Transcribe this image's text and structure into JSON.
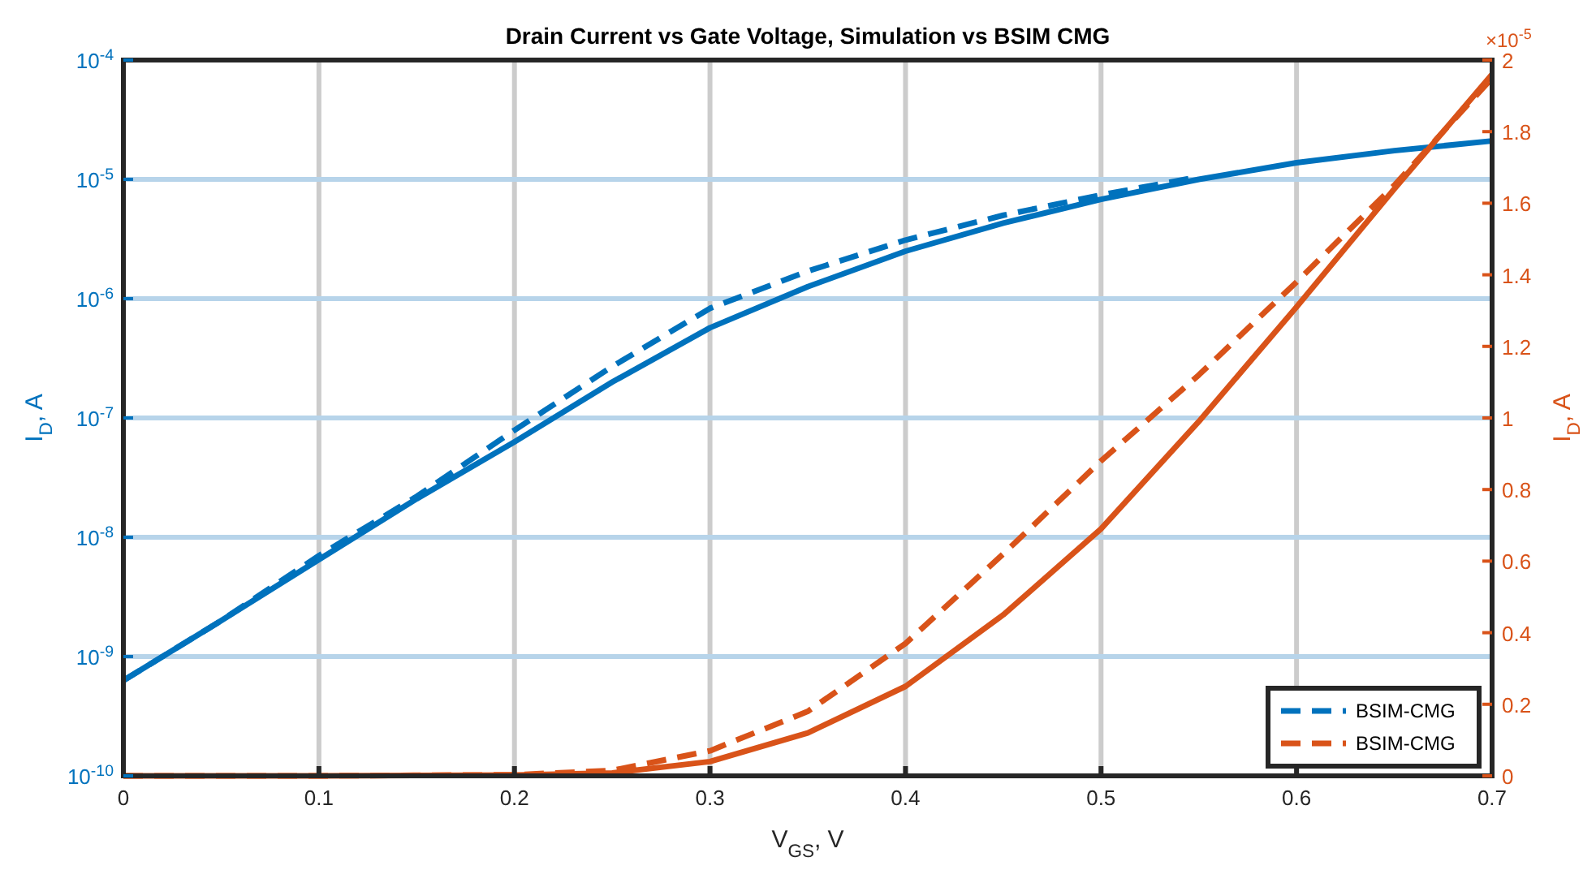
{
  "chart_data": {
    "type": "line",
    "title": "Drain Current vs Gate Voltage, Simulation vs BSIM CMG",
    "xlabel": "V$_{GS}$, V",
    "ylabel": "I$_{D}$, A",
    "y2label": "I$_{D}$, A",
    "log": "y",
    "grid": true,
    "legend": "bottom right",
    "xlim": [
      0,
      0.7
    ],
    "xticks": [
      0,
      0.1,
      0.2,
      0.3,
      0.4,
      0.5,
      0.6,
      0.7
    ],
    "ylim": [
      1e-10,
      0.0001
    ],
    "yticks": [
      {
        "value": 1e-10,
        "label": "10$^{-10}$"
      },
      {
        "value": 1e-09,
        "label": "10$^{-9}$"
      },
      {
        "value": 1e-08,
        "label": "10$^{-8}$"
      },
      {
        "value": 1e-07,
        "label": "10$^{-7}$"
      },
      {
        "value": 1e-06,
        "label": "10$^{-6}$"
      },
      {
        "value": 1e-05,
        "label": "10$^{-5}$"
      },
      {
        "value": 0.0001,
        "label": "10$^{-4}$"
      }
    ],
    "y2lim": [
      0,
      2
    ],
    "y2ticks": [
      0,
      0.2,
      0.4,
      0.6,
      0.8,
      1,
      1.2,
      1.4,
      1.6,
      1.8,
      2
    ],
    "annotations": [
      "×10$^{-5}$"
    ],
    "series": [
      {
        "color": "#0072bd",
        "line_style": "solid",
        "x": [
          0,
          0.05,
          0.1,
          0.15,
          0.2,
          0.25,
          0.3,
          0.35,
          0.4,
          0.45,
          0.5,
          0.55,
          0.6,
          0.65,
          0.7
        ],
        "values": [
          6.3e-10,
          2e-09,
          6.5e-09,
          2.1e-08,
          6.3e-08,
          2e-07,
          5.7e-07,
          1.26e-06,
          2.5e-06,
          4.3e-06,
          6.8e-06,
          1e-05,
          1.38e-05,
          1.74e-05,
          2.1e-05
        ]
      },
      {
        "name": "BSIM-CMG",
        "color": "#0072bd",
        "line_style": "dashed",
        "x": [
          0,
          0.05,
          0.1,
          0.15,
          0.2,
          0.25,
          0.3,
          0.35,
          0.4,
          0.45,
          0.5,
          0.55
        ],
        "values": [
          6.3e-10,
          2e-09,
          7e-09,
          2.2e-08,
          7.9e-08,
          2.7e-07,
          8.3e-07,
          1.7e-06,
          3.1e-06,
          5e-06,
          7.4e-06,
          1.05e-05
        ]
      },
      {
        "color": "#d95319",
        "axis": "y2",
        "line_style": "solid",
        "x": [
          0,
          0.1,
          0.2,
          0.25,
          0.3,
          0.35,
          0.4,
          0.45,
          0.5,
          0.55,
          0.6,
          0.65,
          0.7
        ],
        "values": [
          0,
          0,
          0.002,
          0.008,
          0.04,
          0.12,
          0.25,
          0.45,
          0.69,
          0.99,
          1.31,
          1.64,
          1.96
        ]
      },
      {
        "name": "BSIM-CMG",
        "color": "#d95319",
        "axis": "y2",
        "line_style": "dashed",
        "x": [
          0,
          0.1,
          0.2,
          0.25,
          0.3,
          0.35,
          0.4,
          0.45,
          0.5,
          0.55,
          0.6,
          0.65,
          0.7
        ],
        "values": [
          0,
          0,
          0.003,
          0.015,
          0.07,
          0.18,
          0.37,
          0.62,
          0.88,
          1.12,
          1.38,
          1.65,
          1.95
        ]
      }
    ]
  }
}
